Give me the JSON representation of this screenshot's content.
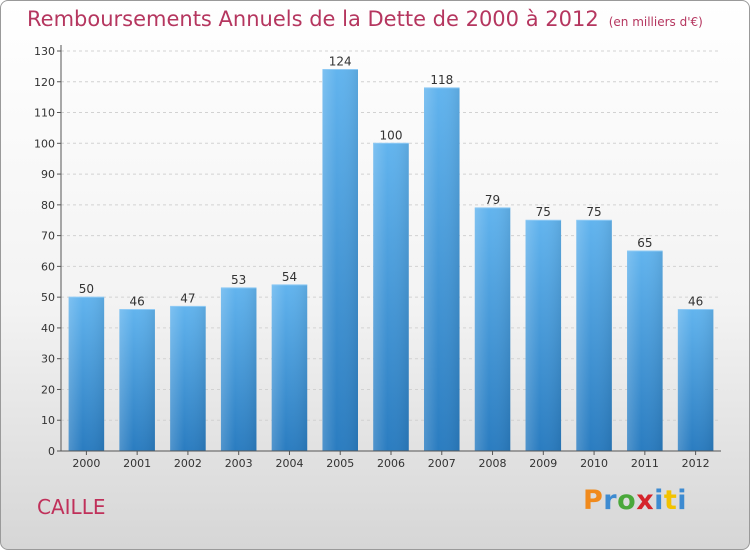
{
  "title": "Remboursements Annuels de la Dette de 2000 à 2012",
  "unit_label": "(en milliers d'€)",
  "commune": "CAILLE",
  "logo": {
    "letters": [
      "P",
      "r",
      "o",
      "x",
      "i",
      "t",
      "i"
    ],
    "colors": [
      "#f08a1c",
      "#3d8bd1",
      "#4aa83a",
      "#d5242b",
      "#3d8bd1",
      "#f2c200",
      "#3d8bd1"
    ]
  },
  "colors": {
    "bar_light": "#62b4ee",
    "bar_dark": "#2a7cc0",
    "title": "#b5365f",
    "grid": "#d2d2d2"
  },
  "chart_data": {
    "type": "bar",
    "categories": [
      "2000",
      "2001",
      "2002",
      "2003",
      "2004",
      "2005",
      "2006",
      "2007",
      "2008",
      "2009",
      "2010",
      "2011",
      "2012"
    ],
    "values": [
      50,
      46,
      47,
      53,
      54,
      124,
      100,
      118,
      79,
      75,
      75,
      65,
      46
    ],
    "data_labels": [
      "50",
      "46",
      "47",
      "53",
      "54",
      "124",
      "100",
      "118",
      "79",
      "75",
      "75",
      "65",
      "46"
    ],
    "y_ticks": [
      "0",
      "10",
      "20",
      "30",
      "40",
      "50",
      "60",
      "70",
      "80",
      "90",
      "100",
      "110",
      "120",
      "130"
    ],
    "ylim": [
      0,
      130
    ],
    "grid": true
  }
}
